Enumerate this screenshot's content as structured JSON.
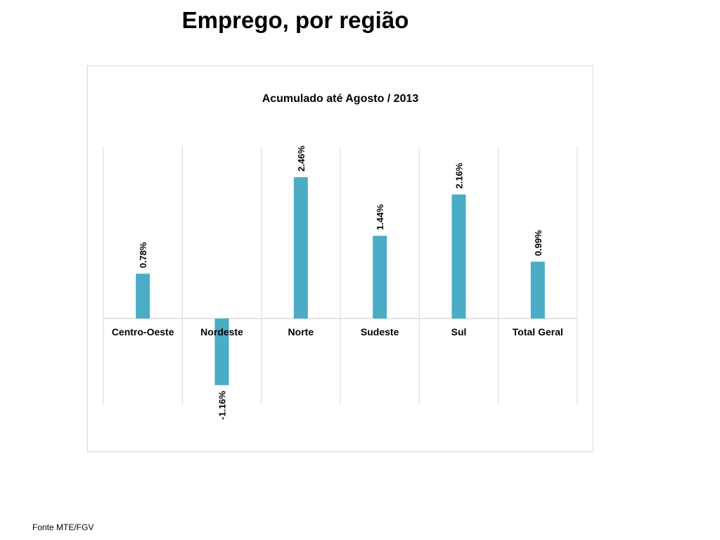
{
  "slide": {
    "title": "Emprego, por região",
    "footer": "Fonte MTE/FGV"
  },
  "chart_data": {
    "type": "bar",
    "title": "Acumulado até Agosto / 2013",
    "categories": [
      "Centro-Oeste",
      "Nordeste",
      "Norte",
      "Sudeste",
      "Sul",
      "Total Geral"
    ],
    "values": [
      0.78,
      -1.16,
      2.46,
      1.44,
      2.16,
      0.99
    ],
    "data_labels": [
      "0.78%",
      "-1.16%",
      "2.46%",
      "1.44%",
      "2.16%",
      "0.99%"
    ],
    "ylim": [
      -1.5,
      3.0
    ],
    "xlabel": "",
    "ylabel": "",
    "bar_color": "#4bacc6",
    "grid_color": "#d9d9d9"
  }
}
